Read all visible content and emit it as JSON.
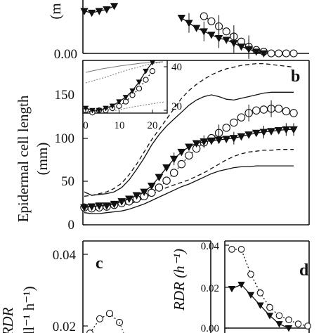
{
  "chart_data": [
    {
      "panel": "a",
      "type": "line",
      "ylim_visible": [
        0,
        0.03
      ],
      "y_tick_labels": [
        "0.00"
      ],
      "ylabel_fragment": "(m",
      "x": [
        1,
        2,
        3,
        4,
        5,
        6,
        7,
        8,
        9,
        10,
        11,
        12,
        13,
        14,
        15,
        16,
        17,
        18,
        19,
        20,
        21,
        22,
        23,
        24,
        25,
        26,
        27,
        28,
        29
      ],
      "series": [
        {
          "marker": "filled-triangle",
          "style": "solid",
          "values": [
            0.025,
            0.024,
            0.025,
            0.026,
            0.028,
            null,
            null,
            null,
            null,
            null,
            null,
            null,
            null,
            0.021,
            0.018,
            0.015,
            0.013,
            0.011,
            0.009,
            0.008,
            0.006,
            0.004,
            0.0025,
            0.001,
            0.0,
            null,
            null,
            null,
            null
          ]
        },
        {
          "marker": "open-circle",
          "style": "dotted",
          "values": [
            null,
            null,
            null,
            null,
            null,
            null,
            null,
            null,
            null,
            null,
            null,
            null,
            null,
            null,
            null,
            null,
            0.022,
            0.019,
            0.016,
            0.013,
            0.01,
            0.007,
            0.004,
            0.002,
            0.001,
            0.0,
            0.0,
            0.0,
            0.0
          ]
        }
      ]
    },
    {
      "panel": "b",
      "type": "line",
      "ylabel": "Epidermal cell length (mm)",
      "ylim": [
        0,
        190
      ],
      "y_ticks": [
        0,
        50,
        100,
        150
      ],
      "x": [
        1,
        2,
        3,
        4,
        5,
        6,
        7,
        8,
        9,
        10,
        11,
        12,
        13,
        14,
        15,
        16,
        17,
        18,
        19,
        20,
        21,
        22,
        23,
        24,
        25,
        26,
        27,
        28,
        29
      ],
      "series": [
        {
          "marker": "filled-triangle",
          "style": "solid",
          "values": [
            20,
            21,
            22,
            22,
            24,
            27,
            30,
            34,
            38,
            45,
            55,
            66,
            76,
            84,
            90,
            94,
            96,
            97,
            98,
            99,
            100,
            102,
            104,
            106,
            107,
            108,
            109,
            110,
            110
          ]
        },
        {
          "marker": "open-circle",
          "style": "dotted",
          "values": [
            20,
            19,
            20,
            21,
            23,
            25,
            27,
            30,
            33,
            37,
            43,
            51,
            60,
            70,
            80,
            88,
            95,
            100,
            106,
            112,
            118,
            124,
            129,
            132,
            133,
            134,
            134,
            131,
            129
          ]
        },
        {
          "marker": "none",
          "style": "dashed",
          "values": [
            33,
            34,
            36,
            38,
            42,
            48,
            58,
            70,
            84,
            98,
            110,
            122,
            134,
            146,
            155,
            162,
            168,
            173,
            177,
            180,
            182,
            184,
            185,
            186,
            186,
            185,
            184,
            183,
            182
          ]
        },
        {
          "marker": "none",
          "style": "solid",
          "values": [
            38,
            34,
            35,
            36,
            38,
            43,
            52,
            64,
            77,
            92,
            104,
            114,
            122,
            130,
            138,
            144,
            148,
            150,
            148,
            145,
            144,
            146,
            148,
            150,
            152,
            153,
            153,
            153,
            153
          ]
        },
        {
          "marker": "none",
          "style": "dashed",
          "values": [
            20,
            19,
            19,
            20,
            21,
            22,
            24,
            27,
            31,
            35,
            39,
            43,
            46,
            49,
            52,
            56,
            60,
            65,
            70,
            75,
            79,
            82,
            84,
            85,
            86,
            86,
            87,
            87,
            87
          ]
        },
        {
          "marker": "none",
          "style": "solid",
          "values": [
            14,
            13,
            13,
            14,
            15,
            16,
            18,
            21,
            24,
            28,
            32,
            36,
            40,
            44,
            47,
            51,
            55,
            59,
            62,
            64,
            66,
            67,
            67,
            68,
            68,
            68,
            68,
            68,
            68
          ]
        }
      ],
      "inset": {
        "x_ticks": [
          0,
          10,
          20
        ],
        "y_ticks": [
          20,
          40
        ],
        "xlim": [
          -1,
          25
        ],
        "ylim": [
          12,
          45
        ],
        "x": [
          0,
          2,
          4,
          6,
          8,
          10,
          12,
          14,
          16,
          18,
          20
        ],
        "series": [
          {
            "marker": "filled-triangle",
            "style": "solid",
            "values": [
              21,
              20,
              20,
              21,
              22,
              24,
              26,
              29,
              33,
              38,
              42
            ]
          },
          {
            "marker": "open-circle",
            "style": "dotted",
            "values": [
              20,
              19,
              20,
              20,
              21,
              22,
              24,
              27,
              30,
              34,
              38
            ]
          }
        ]
      }
    },
    {
      "panel": "c",
      "type": "line",
      "y_tick_labels": [
        "0.04",
        "0.02"
      ],
      "ylabel_fragment_a": "RDR",
      "ylabel_fragment_b": "ll-1 h-1)",
      "series": [
        {
          "marker": "open-circle",
          "style": "dotted",
          "x": [
            1,
            2,
            3,
            4
          ],
          "values": [
            0.018,
            0.022,
            0.0235,
            0.021
          ]
        }
      ]
    },
    {
      "panel": "d",
      "type": "line",
      "ylabel": "RDR (h-1)",
      "y_ticks": [
        0.0,
        0.02,
        0.04
      ],
      "y_tick_labels": [
        "0.00",
        "0.02",
        "0.04"
      ],
      "ylim": [
        0.0,
        0.042
      ],
      "x": [
        1,
        2,
        3,
        4,
        5,
        6,
        7,
        8,
        9
      ],
      "series": [
        {
          "marker": "open-circle",
          "style": "dotted",
          "values": [
            0.038,
            0.038,
            0.026,
            0.017,
            0.01,
            0.006,
            0.004,
            0.002,
            0.001
          ]
        },
        {
          "marker": "filled-triangle",
          "style": "solid",
          "values": [
            0.019,
            0.021,
            0.016,
            0.011,
            0.006,
            0.002,
            0.0,
            null,
            null
          ]
        }
      ]
    }
  ],
  "labels": {
    "panel_b": "b",
    "panel_c": "c",
    "panel_d": "d",
    "ylabel_b_line1": "Epidermal cell length",
    "ylabel_b_line2": "(mm)",
    "ylabel_a_fragment": "(m",
    "ylabel_c_fragment_a": "RDR",
    "ylabel_c_fragment_b": "ll⁻¹ h⁻¹)",
    "ylabel_d": "RDR (h⁻¹)",
    "a_tick_0": "0.00",
    "b_tick_0": "0",
    "b_tick_50": "50",
    "b_tick_100": "100",
    "b_tick_150": "150",
    "c_tick_004": "0.04",
    "c_tick_002": "0.02",
    "d_tick_004": "0.04",
    "d_tick_002": "0.02",
    "d_tick_000": "0.00",
    "inset_x_0": "0",
    "inset_x_10": "10",
    "inset_x_20": "20",
    "inset_y_20": "20",
    "inset_y_40": "40"
  }
}
